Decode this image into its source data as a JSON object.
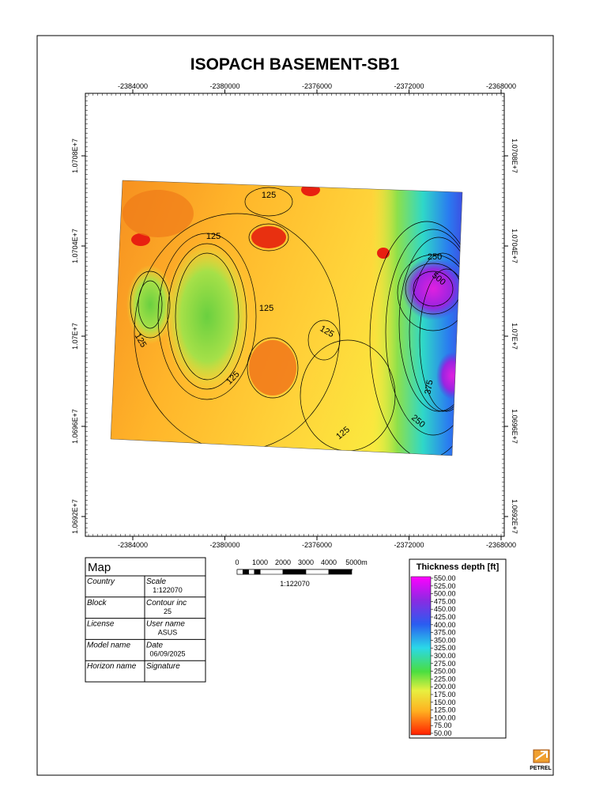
{
  "title": "ISOPACH BASEMENT-SB1",
  "map": {
    "x_ticks": [
      -2384000,
      -2380000,
      -2376000,
      -2372000,
      -2368000
    ],
    "y_ticks": [
      {
        "value": 10708000,
        "label": "1.0708E+7"
      },
      {
        "value": 10704000,
        "label": "1.0704E+7"
      },
      {
        "value": 10700000,
        "label": "1.07E+7"
      },
      {
        "value": 10696000,
        "label": "1.0696E+7"
      },
      {
        "value": 10692000,
        "label": "1.0692E+7"
      }
    ],
    "contour_labels": [
      "125",
      "125",
      "125",
      "125",
      "125",
      "125",
      "125",
      "250",
      "500",
      "375",
      "250"
    ]
  },
  "info_table": {
    "title": "Map",
    "rows": [
      {
        "left": "Country",
        "right": "Scale",
        "value": "1:122070"
      },
      {
        "left": "Block",
        "right": "Contour inc",
        "value": "25"
      },
      {
        "left": "License",
        "right": "User name",
        "value": "ASUS"
      },
      {
        "left": "Model name",
        "right": "Date",
        "value": "06/09/2025"
      },
      {
        "left": "Horizon name",
        "right": "Signature"
      }
    ]
  },
  "scale_bar": {
    "labels": [
      "0",
      "1000",
      "2000",
      "3000",
      "4000",
      "5000m"
    ],
    "ratio": "1:122070"
  },
  "legend": {
    "title": "Thickness depth [ft]",
    "labels": [
      "550.00",
      "525.00",
      "500.00",
      "475.00",
      "450.00",
      "425.00",
      "400.00",
      "375.00",
      "350.00",
      "325.00",
      "300.00",
      "275.00",
      "250.00",
      "225.00",
      "200.00",
      "175.00",
      "150.00",
      "125.00",
      "100.00",
      "75.00",
      "50.00"
    ]
  },
  "logo": "PETREL"
}
